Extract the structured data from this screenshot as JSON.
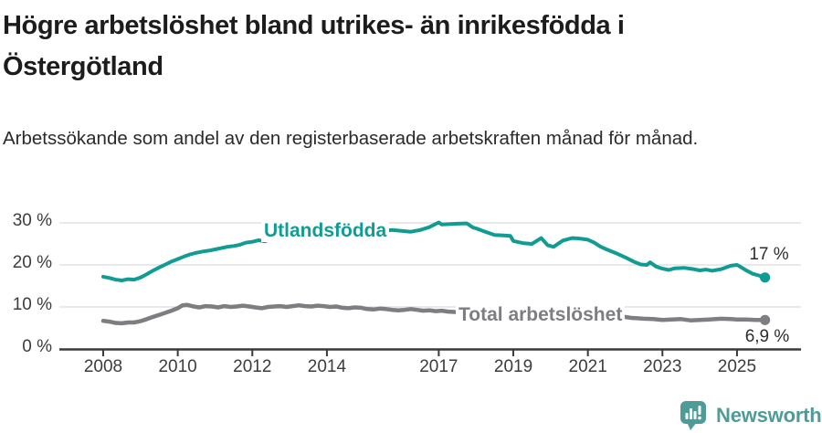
{
  "header": {
    "title": "Högre arbetslöshet bland utrikes- än inrikesfödda i Östergötland",
    "subtitle": "Arbetssökande som andel av den registerbaserade arbetskraften månad för månad."
  },
  "chart_data": {
    "type": "line",
    "title": "Högre arbetslöshet bland utrikes- än inrikesfödda i Östergötland",
    "subtitle": "Arbetssökande som andel av den registerbaserade arbetskraften månad för månad.",
    "grid": "horizontal",
    "grid_color": "#dcdcdc",
    "axis_color": "#3a3a3a",
    "x_axis": {
      "ticks": [
        2008,
        2010,
        2012,
        2014,
        2017,
        2019,
        2021,
        2023,
        2025
      ],
      "tick_labels": [
        "2008",
        "2010",
        "2012",
        "2014",
        "2017",
        "2019",
        "2021",
        "2023",
        "2025"
      ],
      "range": [
        2006.85,
        2026.6
      ]
    },
    "y_axis": {
      "ticks": [
        0,
        10,
        20,
        30
      ],
      "tick_labels": [
        "0 %",
        "10 %",
        "20 %",
        "30 %"
      ],
      "range": [
        0,
        33
      ],
      "unit": "%"
    },
    "series": [
      {
        "name": "Utlandsfödda",
        "color": "#119c93",
        "end_label": "17 %",
        "end_value": 17,
        "points": [
          [
            2008.0,
            17.2
          ],
          [
            2008.17,
            16.9
          ],
          [
            2008.33,
            16.5
          ],
          [
            2008.5,
            16.3
          ],
          [
            2008.67,
            16.6
          ],
          [
            2008.83,
            16.5
          ],
          [
            2009.0,
            17.0
          ],
          [
            2009.17,
            17.8
          ],
          [
            2009.33,
            18.6
          ],
          [
            2009.5,
            19.4
          ],
          [
            2009.67,
            20.1
          ],
          [
            2009.83,
            20.8
          ],
          [
            2010.0,
            21.4
          ],
          [
            2010.17,
            22.0
          ],
          [
            2010.33,
            22.5
          ],
          [
            2010.5,
            22.9
          ],
          [
            2010.67,
            23.2
          ],
          [
            2010.83,
            23.4
          ],
          [
            2011.0,
            23.7
          ],
          [
            2011.17,
            24.0
          ],
          [
            2011.33,
            24.3
          ],
          [
            2011.5,
            24.5
          ],
          [
            2011.67,
            24.8
          ],
          [
            2011.83,
            25.3
          ],
          [
            2012.0,
            25.5
          ],
          [
            2012.17,
            25.9
          ],
          [
            2012.33,
            25.6
          ],
          [
            2012.5,
            26.1
          ],
          [
            2012.67,
            26.3
          ],
          [
            2012.83,
            26.4
          ],
          [
            2013.0,
            26.6
          ],
          [
            2013.25,
            26.9
          ],
          [
            2013.5,
            27.2
          ],
          [
            2013.75,
            27.1
          ],
          [
            2014.0,
            27.4
          ],
          [
            2014.25,
            27.6
          ],
          [
            2014.5,
            27.5
          ],
          [
            2014.75,
            27.7
          ],
          [
            2015.0,
            27.9
          ],
          [
            2015.25,
            28.0
          ],
          [
            2015.5,
            28.1
          ],
          [
            2015.75,
            28.3
          ],
          [
            2016.0,
            28.1
          ],
          [
            2016.25,
            27.9
          ],
          [
            2016.5,
            28.3
          ],
          [
            2016.75,
            29.0
          ],
          [
            2017.0,
            30.1
          ],
          [
            2017.08,
            29.6
          ],
          [
            2017.25,
            29.7
          ],
          [
            2017.5,
            29.8
          ],
          [
            2017.75,
            29.9
          ],
          [
            2017.92,
            28.9
          ],
          [
            2018.0,
            28.7
          ],
          [
            2018.25,
            27.9
          ],
          [
            2018.5,
            27.1
          ],
          [
            2018.75,
            27.0
          ],
          [
            2018.92,
            26.9
          ],
          [
            2019.0,
            25.7
          ],
          [
            2019.25,
            25.2
          ],
          [
            2019.5,
            25.0
          ],
          [
            2019.75,
            26.4
          ],
          [
            2019.92,
            24.7
          ],
          [
            2020.08,
            24.3
          ],
          [
            2020.33,
            25.8
          ],
          [
            2020.58,
            26.4
          ],
          [
            2020.75,
            26.3
          ],
          [
            2021.0,
            26.0
          ],
          [
            2021.17,
            25.3
          ],
          [
            2021.33,
            24.4
          ],
          [
            2021.5,
            23.7
          ],
          [
            2021.75,
            22.8
          ],
          [
            2022.0,
            21.8
          ],
          [
            2022.25,
            20.7
          ],
          [
            2022.42,
            20.1
          ],
          [
            2022.58,
            20.0
          ],
          [
            2022.67,
            20.6
          ],
          [
            2022.83,
            19.6
          ],
          [
            2023.0,
            19.1
          ],
          [
            2023.17,
            18.8
          ],
          [
            2023.33,
            19.2
          ],
          [
            2023.58,
            19.3
          ],
          [
            2023.83,
            19.0
          ],
          [
            2024.0,
            18.7
          ],
          [
            2024.17,
            18.9
          ],
          [
            2024.33,
            18.6
          ],
          [
            2024.58,
            19.0
          ],
          [
            2024.83,
            19.8
          ],
          [
            2025.0,
            20.0
          ],
          [
            2025.08,
            19.6
          ],
          [
            2025.25,
            18.7
          ],
          [
            2025.42,
            17.9
          ],
          [
            2025.58,
            17.5
          ],
          [
            2025.75,
            17.0
          ]
        ]
      },
      {
        "name": "Total arbetslöshet",
        "color": "#7d7d82",
        "end_label": "6,9 %",
        "end_value": 6.9,
        "points": [
          [
            2008.0,
            6.7
          ],
          [
            2008.17,
            6.5
          ],
          [
            2008.33,
            6.2
          ],
          [
            2008.5,
            6.1
          ],
          [
            2008.67,
            6.3
          ],
          [
            2008.83,
            6.3
          ],
          [
            2009.0,
            6.6
          ],
          [
            2009.17,
            7.1
          ],
          [
            2009.33,
            7.6
          ],
          [
            2009.5,
            8.1
          ],
          [
            2009.67,
            8.6
          ],
          [
            2009.83,
            9.1
          ],
          [
            2010.0,
            9.7
          ],
          [
            2010.13,
            10.4
          ],
          [
            2010.25,
            10.5
          ],
          [
            2010.42,
            10.1
          ],
          [
            2010.58,
            9.9
          ],
          [
            2010.75,
            10.2
          ],
          [
            2010.92,
            10.1
          ],
          [
            2011.08,
            9.9
          ],
          [
            2011.25,
            10.2
          ],
          [
            2011.42,
            10.0
          ],
          [
            2011.58,
            10.1
          ],
          [
            2011.75,
            10.3
          ],
          [
            2011.92,
            10.1
          ],
          [
            2012.08,
            9.9
          ],
          [
            2012.25,
            9.7
          ],
          [
            2012.42,
            10.0
          ],
          [
            2012.58,
            10.1
          ],
          [
            2012.75,
            10.2
          ],
          [
            2012.92,
            10.0
          ],
          [
            2013.08,
            10.2
          ],
          [
            2013.25,
            10.4
          ],
          [
            2013.42,
            10.2
          ],
          [
            2013.58,
            10.1
          ],
          [
            2013.75,
            10.3
          ],
          [
            2013.92,
            10.2
          ],
          [
            2014.08,
            10.0
          ],
          [
            2014.25,
            10.1
          ],
          [
            2014.42,
            9.8
          ],
          [
            2014.58,
            9.7
          ],
          [
            2014.75,
            9.9
          ],
          [
            2014.92,
            9.8
          ],
          [
            2015.08,
            9.5
          ],
          [
            2015.25,
            9.4
          ],
          [
            2015.42,
            9.6
          ],
          [
            2015.58,
            9.5
          ],
          [
            2015.75,
            9.3
          ],
          [
            2015.92,
            9.2
          ],
          [
            2016.08,
            9.3
          ],
          [
            2016.25,
            9.5
          ],
          [
            2016.42,
            9.3
          ],
          [
            2016.58,
            9.1
          ],
          [
            2016.75,
            9.2
          ],
          [
            2016.92,
            9.0
          ],
          [
            2017.08,
            9.1
          ],
          [
            2017.25,
            8.9
          ],
          [
            2017.42,
            8.8
          ],
          [
            2017.58,
            8.7
          ],
          [
            2017.75,
            8.6
          ],
          [
            2018.0,
            8.5
          ],
          [
            2018.5,
            8.3
          ],
          [
            2019.0,
            8.1
          ],
          [
            2019.5,
            8.0
          ],
          [
            2020.0,
            8.2
          ],
          [
            2020.33,
            8.9
          ],
          [
            2020.67,
            8.8
          ],
          [
            2021.0,
            8.5
          ],
          [
            2021.5,
            8.0
          ],
          [
            2022.0,
            7.6
          ],
          [
            2022.17,
            7.4
          ],
          [
            2022.33,
            7.3
          ],
          [
            2022.5,
            7.2
          ],
          [
            2022.75,
            7.1
          ],
          [
            2023.0,
            6.9
          ],
          [
            2023.25,
            7.0
          ],
          [
            2023.5,
            7.1
          ],
          [
            2023.75,
            6.8
          ],
          [
            2024.0,
            6.9
          ],
          [
            2024.25,
            7.0
          ],
          [
            2024.58,
            7.2
          ],
          [
            2024.83,
            7.1
          ],
          [
            2025.0,
            7.0
          ],
          [
            2025.25,
            7.0
          ],
          [
            2025.5,
            6.9
          ],
          [
            2025.75,
            6.9
          ]
        ]
      }
    ]
  },
  "footer": {
    "brand": "Newsworthy",
    "brand_color": "#4e9c98",
    "logo_icon": "bar-chart-speech-bubble"
  }
}
